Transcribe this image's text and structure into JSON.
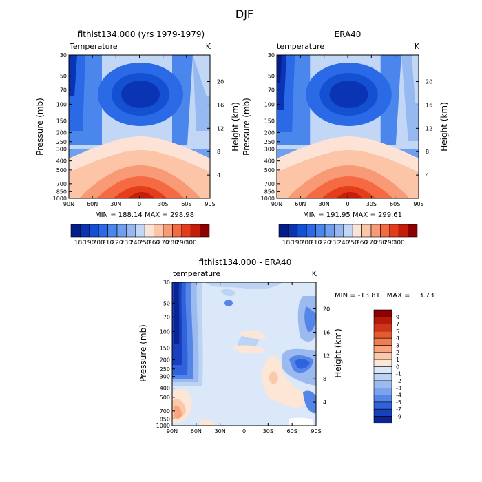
{
  "figure_title": "DJF",
  "chart_data": [
    {
      "type": "heatmap",
      "title": "flthist134.000 (yrs 1979-1979)",
      "variable": "Temperature",
      "units": "K",
      "ylabel": "Pressure (mb)",
      "ylabel_right": "Height (km)",
      "x_ticks": [
        "90N",
        "60N",
        "30N",
        "0",
        "30S",
        "60S",
        "90S"
      ],
      "y_ticks": [
        "30",
        "50",
        "70",
        "100",
        "150",
        "200",
        "250",
        "300",
        "400",
        "500",
        "700",
        "850",
        "1000"
      ],
      "right_ticks": [
        "4",
        "8",
        "12",
        "16",
        "20"
      ],
      "min_max_text": "MIN = 188.14   MAX = 298.98",
      "min": 188.14,
      "max": 298.98,
      "colorbar_labels": [
        "180",
        "190",
        "200",
        "210",
        "220",
        "230",
        "240",
        "250",
        "260",
        "270",
        "280",
        "290",
        "300"
      ]
    },
    {
      "type": "heatmap",
      "title": "ERA40",
      "variable": "temperature",
      "units": "K",
      "ylabel": "Pressure (mb)",
      "ylabel_right": "Height (km)",
      "x_ticks": [
        "90N",
        "60N",
        "30N",
        "0",
        "30S",
        "60S",
        "90S"
      ],
      "y_ticks": [
        "30",
        "50",
        "70",
        "100",
        "150",
        "200",
        "250",
        "300",
        "400",
        "500",
        "700",
        "850",
        "1000"
      ],
      "right_ticks": [
        "4",
        "8",
        "12",
        "16",
        "20"
      ],
      "min_max_text": "MIN = 191.95   MAX = 299.61",
      "min": 191.95,
      "max": 299.61,
      "colorbar_labels": [
        "180",
        "190",
        "200",
        "210",
        "220",
        "230",
        "240",
        "250",
        "260",
        "270",
        "280",
        "290",
        "300"
      ]
    },
    {
      "type": "heatmap",
      "title": "flthist134.000 - ERA40",
      "variable": "temperature",
      "units": "K",
      "ylabel": "Pressure (mb)",
      "ylabel_right": "Height (km)",
      "x_ticks": [
        "90N",
        "60N",
        "30N",
        "0",
        "30S",
        "60S",
        "90S"
      ],
      "y_ticks": [
        "30",
        "50",
        "70",
        "100",
        "150",
        "200",
        "250",
        "300",
        "400",
        "500",
        "700",
        "850",
        "1000"
      ],
      "right_ticks": [
        "4",
        "8",
        "12",
        "16",
        "20"
      ],
      "min_max_text": "MIN = -13.81   MAX =    3.73",
      "min": -13.81,
      "max": 3.73,
      "colorbar_labels": [
        "9",
        "7",
        "5",
        "4",
        "3",
        "2",
        "1",
        "0",
        "-1",
        "-2",
        "-3",
        "-4",
        "-5",
        "-7",
        "-9"
      ]
    }
  ],
  "colors": {
    "temperature_scale": [
      "#051c8c",
      "#0a34b4",
      "#1450d2",
      "#2a6ae6",
      "#4a86ec",
      "#6e9ff0",
      "#96b9f2",
      "#c2d6f5",
      "#fde3d6",
      "#fcc5a8",
      "#f99a76",
      "#f56a42",
      "#e53c1c",
      "#c41e08",
      "#8b0000"
    ],
    "difference_scale": [
      "#8b0000",
      "#b21a0a",
      "#cf3418",
      "#e55a2e",
      "#f27c52",
      "#f8a47e",
      "#fbc8aa",
      "#fde6d6",
      "#dae8f9",
      "#bcd3f3",
      "#9bbaf0",
      "#7ca2ec",
      "#5585e6",
      "#2e63dc",
      "#173fbe",
      "#0a2496"
    ]
  }
}
